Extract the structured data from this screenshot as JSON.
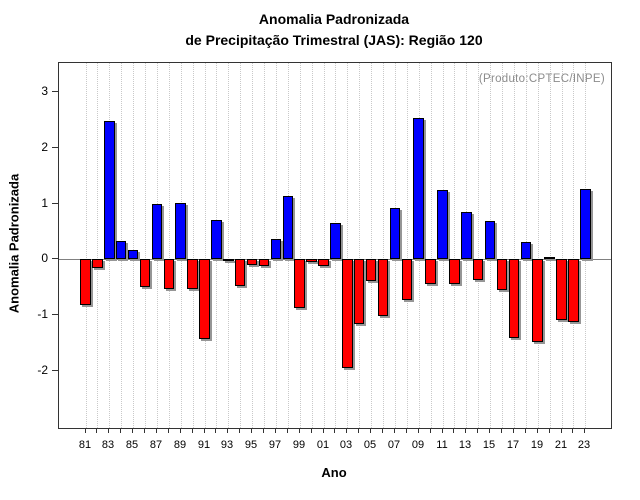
{
  "chart_data": {
    "type": "bar",
    "title_line1": "Anomalia Padronizada",
    "title_line2": "de Precipitação Trimestral (JAS): Região 120",
    "annotation": "(Produto:CPTEC/INPE)",
    "xlabel": "Ano",
    "ylabel": "Anomalia Padronizada",
    "categories": [
      "81",
      "82",
      "83",
      "84",
      "85",
      "86",
      "87",
      "88",
      "89",
      "90",
      "91",
      "92",
      "93",
      "94",
      "95",
      "96",
      "97",
      "98",
      "99",
      "00",
      "01",
      "02",
      "03",
      "04",
      "05",
      "06",
      "07",
      "08",
      "09",
      "10",
      "11",
      "12",
      "13",
      "14",
      "15",
      "16",
      "17",
      "18",
      "19",
      "20",
      "21",
      "22",
      "23"
    ],
    "values": [
      -0.83,
      -0.17,
      2.48,
      0.32,
      0.17,
      -0.5,
      0.98,
      -0.53,
      1.0,
      -0.53,
      -1.44,
      0.69,
      -0.04,
      -0.48,
      -0.1,
      -0.12,
      0.36,
      1.13,
      -0.88,
      -0.05,
      -0.13,
      0.65,
      -1.95,
      -1.17,
      -0.39,
      -1.03,
      0.91,
      -0.73,
      2.53,
      -0.45,
      1.24,
      -0.44,
      0.85,
      -0.37,
      0.68,
      -0.56,
      -1.42,
      0.3,
      -1.48,
      0.03,
      -1.1,
      -1.12,
      1.26
    ],
    "x_labels_shown": [
      "81",
      "83",
      "85",
      "87",
      "89",
      "91",
      "93",
      "95",
      "97",
      "99",
      "01",
      "03",
      "05",
      "07",
      "09",
      "11",
      "13",
      "15",
      "17",
      "19",
      "21",
      "23"
    ],
    "yticks": [
      -2,
      -1,
      0,
      1,
      2,
      3
    ],
    "ylim": [
      -3.02,
      3.52
    ],
    "grid": "vertical-dotted-per-year",
    "legend": "none",
    "colors": {
      "positive": "#0000ff",
      "negative": "#ff0000",
      "bar_border": "#000000",
      "bar_shadow": "#969696",
      "zero_line": "#808080",
      "gridline": "#c9c9c9",
      "axis": "#333333",
      "annotation_text": "#8c8c8c",
      "text": "#000000"
    }
  }
}
